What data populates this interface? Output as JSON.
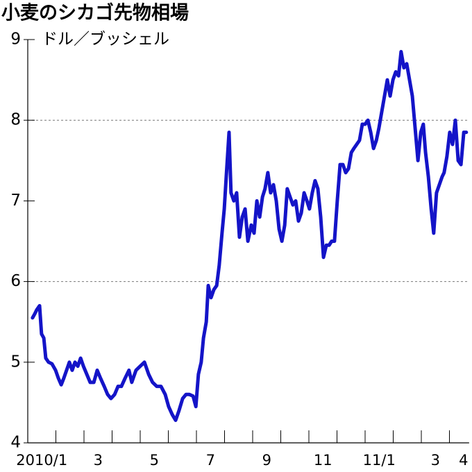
{
  "chart_data": {
    "type": "line",
    "title": "小麦のシカゴ先物相場",
    "y_label": "ドル／ブッシェル",
    "ylim": [
      4,
      9
    ],
    "yticks": [
      4,
      5,
      6,
      7,
      8,
      9
    ],
    "ygrid": [
      6,
      8
    ],
    "xlim": [
      0,
      15.7
    ],
    "xticks": [
      {
        "value": 0,
        "label": "2010/1"
      },
      {
        "value": 2,
        "label": "3"
      },
      {
        "value": 4,
        "label": "5"
      },
      {
        "value": 6,
        "label": "7"
      },
      {
        "value": 8,
        "label": "9"
      },
      {
        "value": 10,
        "label": "11"
      },
      {
        "value": 12,
        "label": "11/1"
      },
      {
        "value": 14,
        "label": "3"
      },
      {
        "value": 15,
        "label": "4"
      }
    ],
    "xminor_ticks": [
      1,
      3,
      5,
      7,
      9,
      11,
      13
    ],
    "color": "#1414c8",
    "x": [
      0.17,
      0.25,
      0.32,
      0.42,
      0.49,
      0.57,
      0.64,
      0.74,
      0.86,
      0.99,
      1.09,
      1.19,
      1.28,
      1.38,
      1.48,
      1.58,
      1.68,
      1.78,
      1.88,
      1.98,
      2.1,
      2.22,
      2.35,
      2.47,
      2.59,
      2.72,
      2.84,
      2.96,
      3.09,
      3.21,
      3.33,
      3.46,
      3.6,
      3.7,
      3.85,
      4.0,
      4.15,
      4.3,
      4.44,
      4.59,
      4.74,
      4.89,
      5.01,
      5.14,
      5.26,
      5.38,
      5.51,
      5.63,
      5.75,
      5.88,
      5.98,
      6.07,
      6.17,
      6.25,
      6.35,
      6.42,
      6.52,
      6.62,
      6.72,
      6.81,
      6.91,
      6.99,
      7.06,
      7.16,
      7.23,
      7.33,
      7.43,
      7.53,
      7.63,
      7.73,
      7.83,
      7.95,
      8.05,
      8.15,
      8.25,
      8.35,
      8.44,
      8.54,
      8.64,
      8.74,
      8.84,
      8.94,
      9.04,
      9.14,
      9.23,
      9.33,
      9.43,
      9.53,
      9.63,
      9.73,
      9.83,
      9.93,
      10.02,
      10.12,
      10.22,
      10.32,
      10.42,
      10.52,
      10.62,
      10.72,
      10.81,
      10.91,
      11.01,
      11.11,
      11.21,
      11.31,
      11.41,
      11.51,
      11.6,
      11.7,
      11.8,
      11.9,
      12.0,
      12.1,
      12.2,
      12.3,
      12.4,
      12.49,
      12.59,
      12.69,
      12.79,
      12.89,
      12.99,
      13.09,
      13.19,
      13.28,
      13.38,
      13.48,
      13.58,
      13.68,
      13.78,
      13.88,
      13.98,
      14.07,
      14.15,
      14.25,
      14.35,
      14.44,
      14.54,
      14.64,
      14.74,
      14.81,
      14.91,
      15.01,
      15.11,
      15.21,
      15.31,
      15.41,
      15.51,
      15.6
    ],
    "values": [
      5.55,
      5.6,
      5.65,
      5.7,
      5.35,
      5.3,
      5.05,
      5.0,
      4.98,
      4.9,
      4.8,
      4.72,
      4.8,
      4.9,
      5.0,
      4.9,
      5.0,
      4.95,
      5.05,
      4.95,
      4.85,
      4.75,
      4.75,
      4.9,
      4.8,
      4.7,
      4.6,
      4.55,
      4.6,
      4.7,
      4.7,
      4.8,
      4.9,
      4.75,
      4.9,
      4.95,
      5.0,
      4.85,
      4.75,
      4.7,
      4.7,
      4.6,
      4.45,
      4.35,
      4.28,
      4.4,
      4.55,
      4.6,
      4.6,
      4.58,
      4.45,
      4.85,
      5.0,
      5.3,
      5.5,
      5.95,
      5.8,
      5.9,
      5.95,
      6.2,
      6.6,
      6.9,
      7.3,
      7.85,
      7.1,
      7.0,
      7.1,
      6.55,
      6.8,
      6.9,
      6.5,
      6.7,
      6.6,
      7.0,
      6.8,
      7.05,
      7.15,
      7.35,
      7.1,
      7.2,
      7.0,
      6.65,
      6.5,
      6.7,
      7.15,
      7.05,
      6.95,
      7.0,
      6.75,
      6.85,
      7.1,
      7.0,
      6.9,
      7.1,
      7.25,
      7.15,
      6.8,
      6.3,
      6.45,
      6.45,
      6.5,
      6.5,
      7.0,
      7.45,
      7.45,
      7.35,
      7.4,
      7.6,
      7.65,
      7.7,
      7.75,
      7.95,
      7.95,
      8.0,
      7.85,
      7.65,
      7.75,
      7.9,
      8.1,
      8.3,
      8.5,
      8.3,
      8.5,
      8.6,
      8.55,
      8.85,
      8.65,
      8.7,
      8.5,
      8.3,
      7.9,
      7.5,
      7.85,
      7.95,
      7.6,
      7.3,
      6.9,
      6.6,
      7.1,
      7.2,
      7.3,
      7.35,
      7.55,
      7.85,
      7.7,
      8.0,
      7.5,
      7.45,
      7.85,
      7.85
    ]
  }
}
